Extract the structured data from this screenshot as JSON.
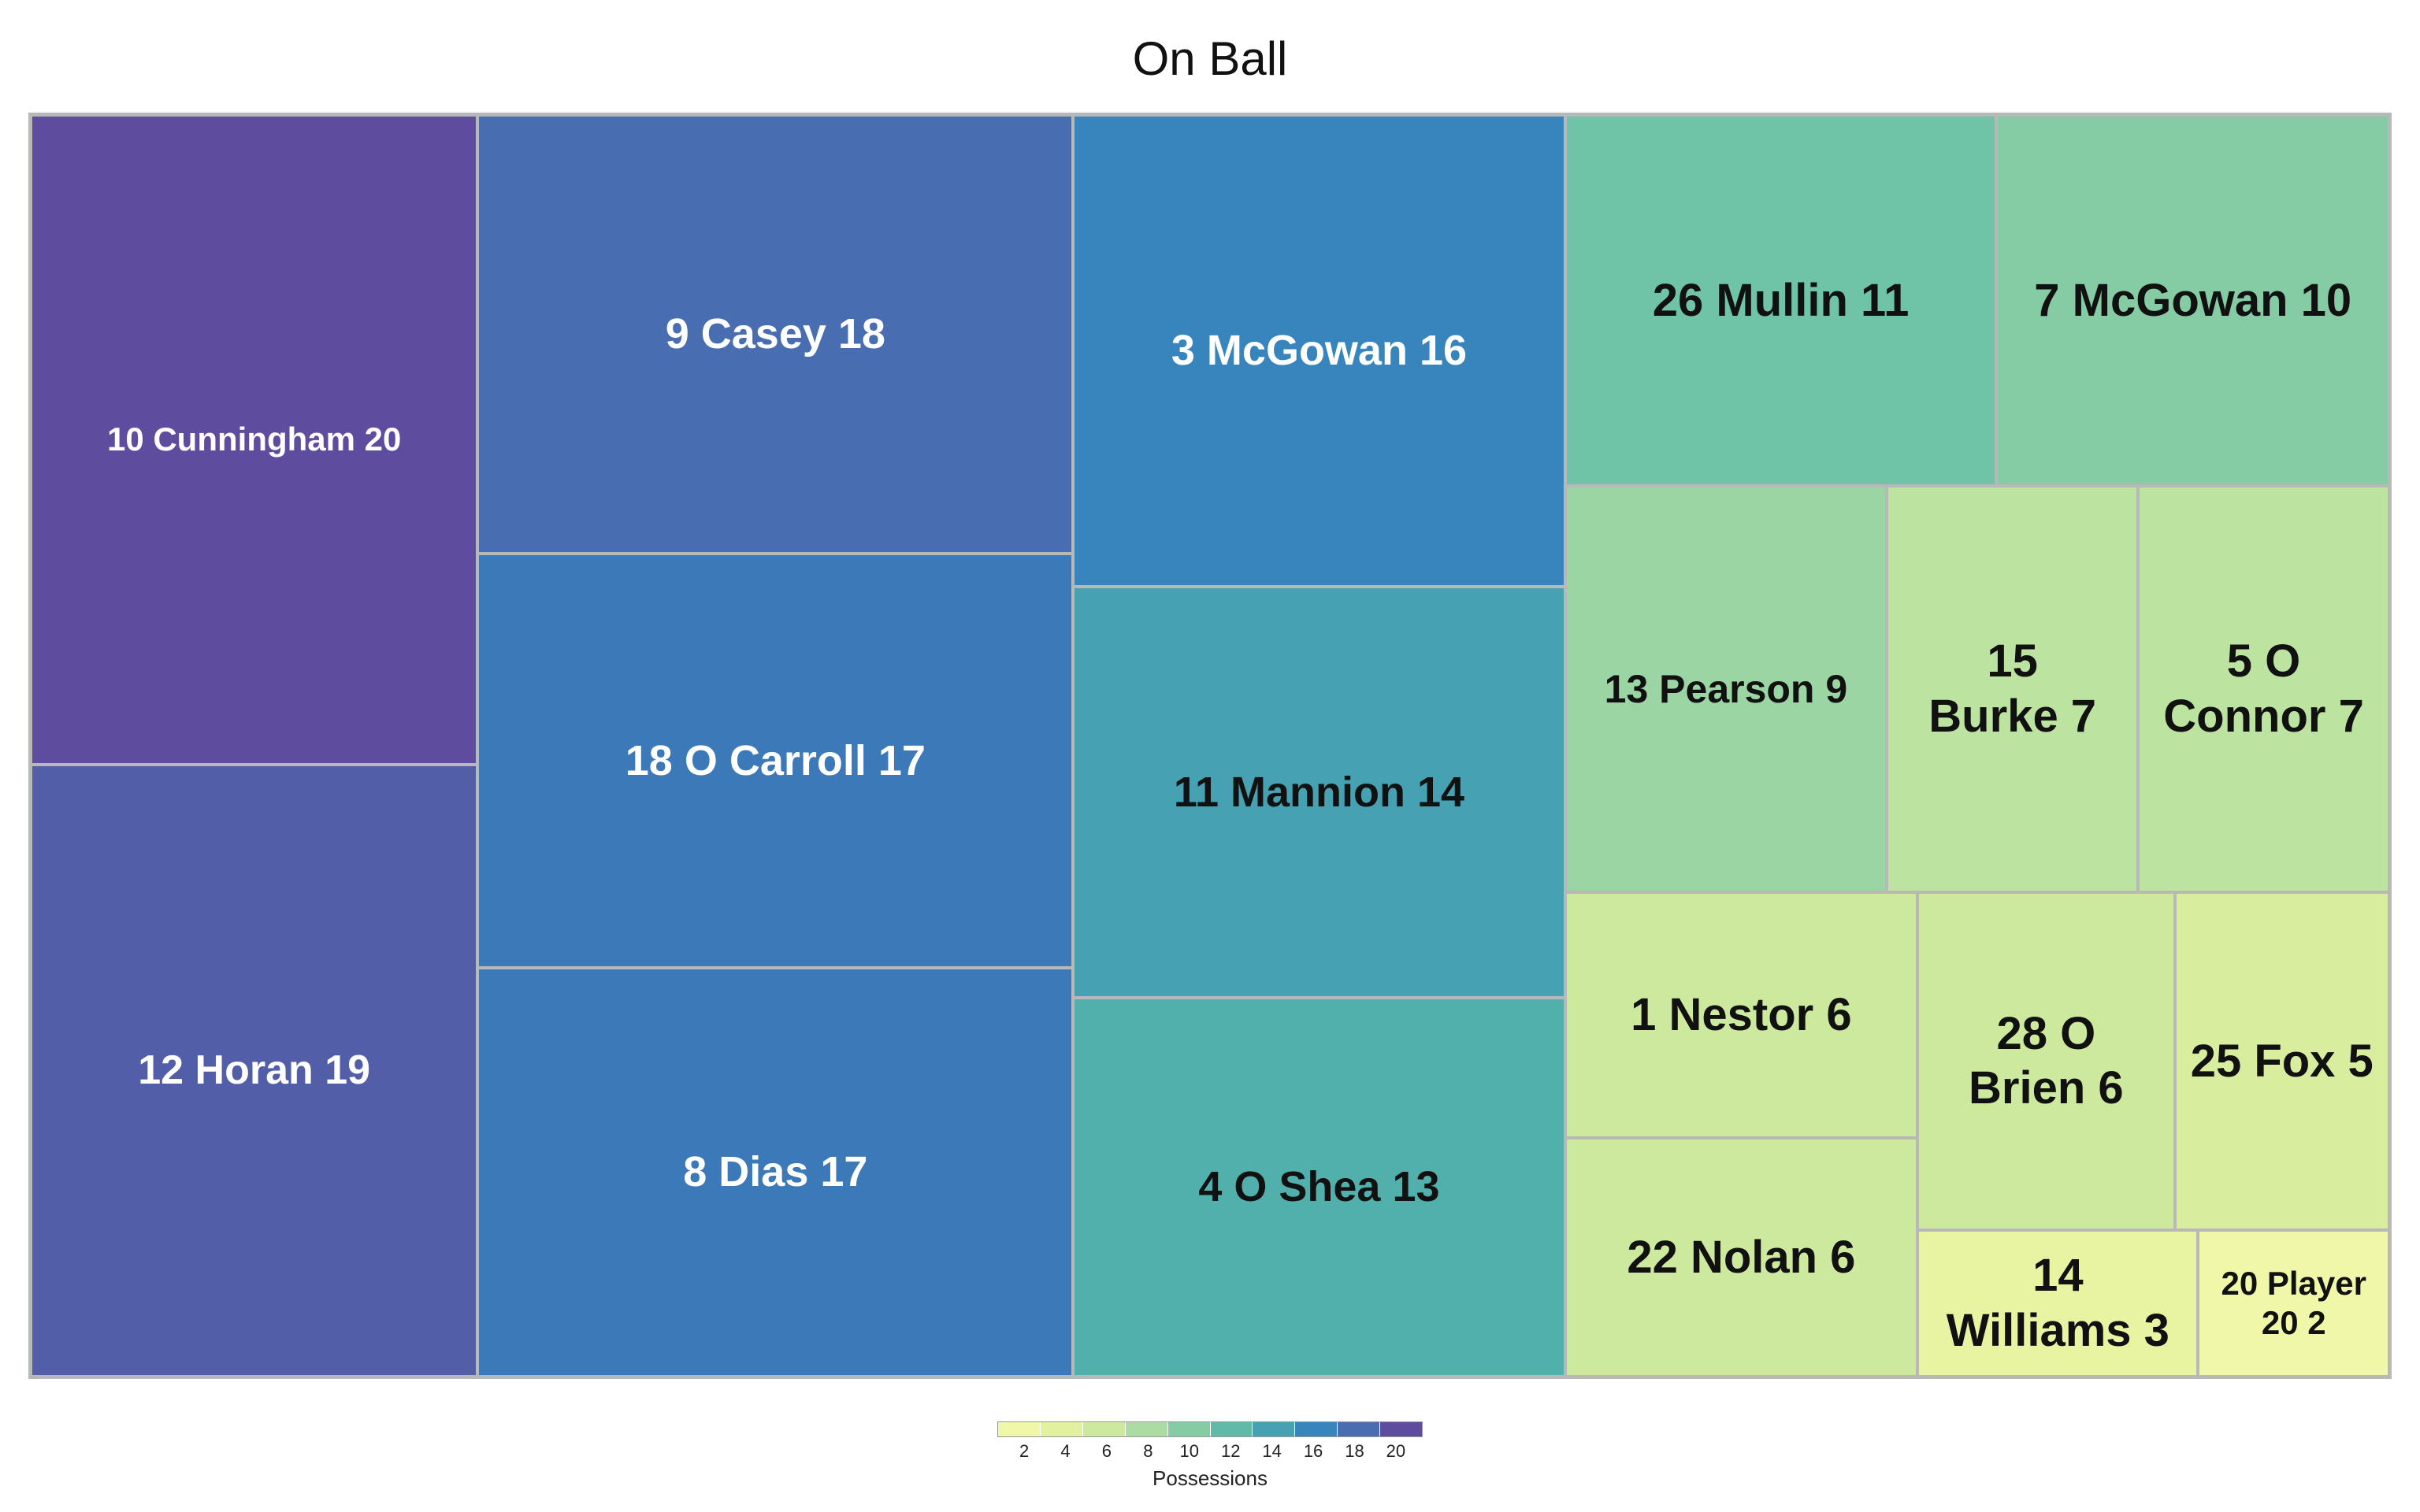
{
  "chart_data": {
    "type": "treemap",
    "title": "On Ball",
    "legend_title": "Possessions",
    "legend_ticks": [
      2,
      4,
      6,
      8,
      10,
      12,
      14,
      16,
      18,
      20
    ],
    "color_scale": [
      "#f0f7a8",
      "#e4f29d",
      "#d2ec9e",
      "#b7e0a0",
      "#97d4a3",
      "#6fc3a6",
      "#55b3aa",
      "#3e98b8",
      "#357fbd",
      "#4a6cb0",
      "#5e4c9e"
    ],
    "value_range": [
      2,
      20
    ],
    "tiles": [
      {
        "label": "10 Cunningham 20",
        "name": "10 Cunningham",
        "value": 20
      },
      {
        "label": "12 Horan 19",
        "name": "12 Horan",
        "value": 19
      },
      {
        "label": "9 Casey 18",
        "name": "9 Casey",
        "value": 18
      },
      {
        "label": "18 O Carroll 17",
        "name": "18 O Carroll",
        "value": 17
      },
      {
        "label": "8 Dias 17",
        "name": "8 Dias",
        "value": 17
      },
      {
        "label": "3 McGowan 16",
        "name": "3 McGowan",
        "value": 16
      },
      {
        "label": "11 Mannion 14",
        "name": "11 Mannion",
        "value": 14
      },
      {
        "label": "4 O Shea 13",
        "name": "4 O Shea",
        "value": 13
      },
      {
        "label": "26 Mullin 11",
        "name": "26 Mullin",
        "value": 11
      },
      {
        "label": "7 McGowan 10",
        "name": "7 McGowan",
        "value": 10
      },
      {
        "label": "13 Pearson 9",
        "name": "13 Pearson",
        "value": 9
      },
      {
        "label": "15\nBurke 7",
        "name": "15 Burke",
        "value": 7
      },
      {
        "label": "5 O\nConnor 7",
        "name": "5 O Connor",
        "value": 7
      },
      {
        "label": "1 Nestor 6",
        "name": "1 Nestor",
        "value": 6
      },
      {
        "label": "22 Nolan 6",
        "name": "22 Nolan",
        "value": 6
      },
      {
        "label": "28 O\nBrien 6",
        "name": "28 O Brien",
        "value": 6
      },
      {
        "label": "25 Fox 5",
        "name": "25 Fox",
        "value": 5
      },
      {
        "label": "14\nWilliams 3",
        "name": "14 Williams",
        "value": 3
      },
      {
        "label": "20 Player\n20 2",
        "name": "20 Player 20",
        "value": 2
      }
    ]
  }
}
